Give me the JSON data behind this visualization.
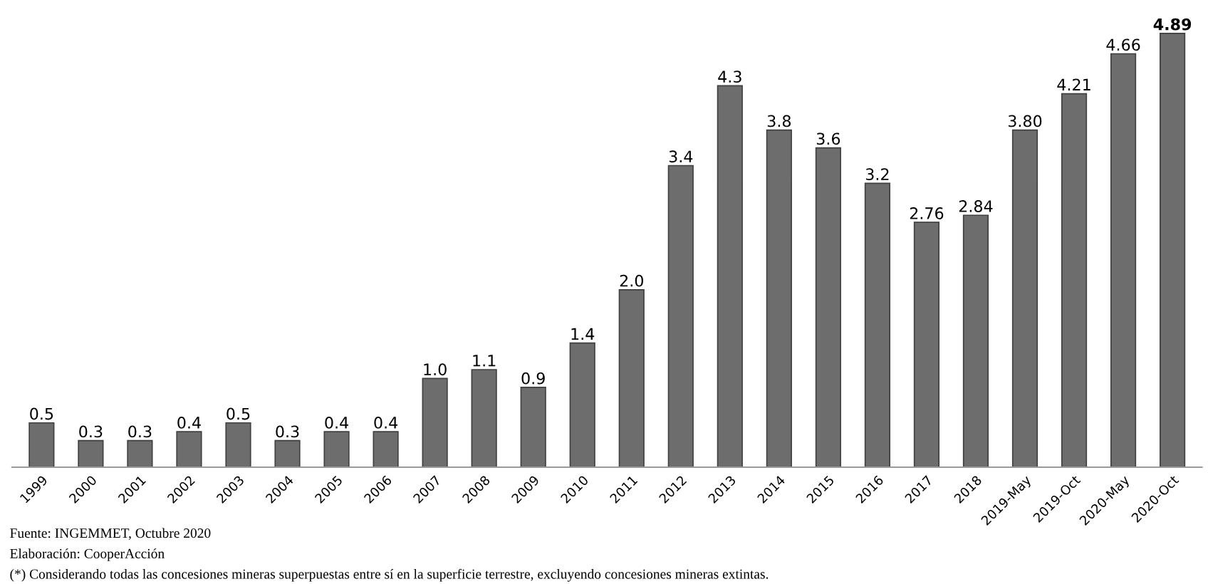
{
  "chart_data": {
    "type": "bar",
    "categories": [
      "1999",
      "2000",
      "2001",
      "2002",
      "2003",
      "2004",
      "2005",
      "2006",
      "2007",
      "2008",
      "2009",
      "2010",
      "2011",
      "2012",
      "2013",
      "2014",
      "2015",
      "2016",
      "2017",
      "2018",
      "2019-May",
      "2019-Oct",
      "2020-May",
      "2020-Oct"
    ],
    "values": [
      0.5,
      0.3,
      0.3,
      0.4,
      0.5,
      0.3,
      0.4,
      0.4,
      1.0,
      1.1,
      0.9,
      1.4,
      2.0,
      3.4,
      4.3,
      3.8,
      3.6,
      3.2,
      2.76,
      2.84,
      3.8,
      4.21,
      4.66,
      4.89
    ],
    "value_labels": [
      "0.5",
      "0.3",
      "0.3",
      "0.4",
      "0.5",
      "0.3",
      "0.4",
      "0.4",
      "1.0",
      "1.1",
      "0.9",
      "1.4",
      "2.0",
      "3.4",
      "4.3",
      "3.8",
      "3.6",
      "3.2",
      "2.76",
      "2.84",
      "3.80",
      "4.21",
      "4.66",
      "4.89"
    ],
    "color": "#6d6d6d",
    "annotations": [
      "Fuente: INGEMMET, Octubre 2020",
      "Elaboración: CooperAcción",
      "(*) Considerando todas las concesiones mineras superpuestas entre sí en la superficie terrestre, excluyendo concesiones mineras extintas."
    ],
    "grid": false,
    "legend": false
  }
}
